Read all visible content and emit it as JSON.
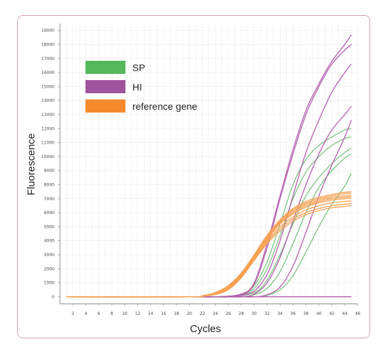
{
  "chart_data": {
    "type": "line",
    "title": "",
    "xlabel": "Cycles",
    "ylabel": "Fluorescence",
    "xlim": [
      0,
      46
    ],
    "ylim": [
      -500,
      19500
    ],
    "grid": true,
    "legend_position": "top-left",
    "x_ticks": [
      2,
      4,
      6,
      8,
      10,
      12,
      14,
      16,
      18,
      20,
      22,
      24,
      26,
      28,
      30,
      32,
      34,
      36,
      38,
      40,
      42,
      44,
      46
    ],
    "y_ticks": [
      0,
      1000,
      2000,
      3000,
      4000,
      5000,
      6000,
      7000,
      8000,
      9000,
      10000,
      11000,
      12000,
      13000,
      14000,
      15000,
      16000,
      17000,
      18000,
      19000
    ],
    "legend": [
      {
        "label": "SP",
        "color": "#55b85a"
      },
      {
        "label": "HI",
        "color": "#a0539e"
      },
      {
        "label": "reference gene",
        "color": "#f58a2c"
      }
    ],
    "series": [
      {
        "group": "SP",
        "color": "#7cc47f",
        "x": [
          1,
          20,
          24,
          28,
          30,
          32,
          34,
          36,
          38,
          40,
          42,
          44,
          45
        ],
        "y": [
          0,
          0,
          0,
          100,
          800,
          2500,
          5200,
          8000,
          9800,
          10800,
          11400,
          11900,
          12000
        ]
      },
      {
        "group": "SP",
        "color": "#7cc47f",
        "x": [
          1,
          20,
          24,
          28,
          30,
          32,
          34,
          36,
          38,
          40,
          42,
          44,
          45
        ],
        "y": [
          0,
          0,
          0,
          80,
          600,
          2000,
          4400,
          7000,
          8900,
          10000,
          10800,
          11300,
          11400
        ]
      },
      {
        "group": "SP",
        "color": "#7cc47f",
        "x": [
          1,
          22,
          26,
          30,
          32,
          34,
          36,
          38,
          40,
          42,
          44,
          45
        ],
        "y": [
          0,
          0,
          0,
          300,
          1200,
          3000,
          5200,
          7200,
          8500,
          9500,
          10300,
          10600
        ]
      },
      {
        "group": "SP",
        "color": "#7cc47f",
        "x": [
          1,
          24,
          28,
          30,
          32,
          34,
          36,
          38,
          40,
          42,
          44,
          45
        ],
        "y": [
          0,
          0,
          0,
          150,
          600,
          1800,
          3800,
          6000,
          7800,
          9000,
          9900,
          10200
        ]
      },
      {
        "group": "SP",
        "color": "#7cc47f",
        "x": [
          1,
          26,
          30,
          32,
          34,
          36,
          38,
          40,
          42,
          44,
          45
        ],
        "y": [
          0,
          0,
          0,
          100,
          500,
          1500,
          3200,
          5000,
          6600,
          7900,
          8800
        ]
      },
      {
        "group": "HI",
        "color": "#b55fb0",
        "x": [
          1,
          20,
          24,
          28,
          30,
          32,
          34,
          36,
          38,
          40,
          42,
          44,
          45
        ],
        "y": [
          0,
          0,
          0,
          200,
          1000,
          3800,
          7200,
          10500,
          13300,
          15200,
          16800,
          18000,
          18700
        ]
      },
      {
        "group": "HI",
        "color": "#b55fb0",
        "x": [
          1,
          20,
          24,
          28,
          30,
          32,
          34,
          36,
          38,
          40,
          42,
          44,
          45
        ],
        "y": [
          0,
          0,
          0,
          150,
          900,
          3500,
          7000,
          10200,
          13000,
          15000,
          16600,
          17600,
          18000
        ]
      },
      {
        "group": "HI",
        "color": "#b55fb0",
        "x": [
          1,
          22,
          26,
          28,
          30,
          32,
          34,
          36,
          38,
          40,
          42,
          44,
          45
        ],
        "y": [
          0,
          0,
          0,
          100,
          400,
          1600,
          4000,
          7200,
          10300,
          12600,
          14600,
          16000,
          16600
        ]
      },
      {
        "group": "HI",
        "color": "#b55fb0",
        "x": [
          1,
          24,
          28,
          30,
          32,
          34,
          36,
          38,
          40,
          42,
          44,
          45
        ],
        "y": [
          0,
          0,
          0,
          200,
          1000,
          2800,
          5400,
          8000,
          10200,
          11900,
          13000,
          13600
        ]
      },
      {
        "group": "HI",
        "color": "#b55fb0",
        "x": [
          1,
          26,
          30,
          32,
          34,
          36,
          38,
          40,
          42,
          44,
          45
        ],
        "y": [
          0,
          0,
          0,
          150,
          700,
          2200,
          4600,
          7200,
          9400,
          11400,
          12600
        ]
      },
      {
        "group": "HI",
        "color": "#b55fb0",
        "x": [
          1,
          45
        ],
        "y": [
          0,
          0
        ]
      },
      {
        "group": "HI",
        "color": "#b55fb0",
        "x": [
          1,
          45
        ],
        "y": [
          0,
          0
        ]
      },
      {
        "group": "reference gene",
        "color": "#f6a152",
        "x": [
          1,
          20,
          22,
          24,
          26,
          28,
          30,
          32,
          34,
          36,
          38,
          40,
          42,
          44,
          45
        ],
        "y": [
          0,
          0,
          80,
          300,
          800,
          1700,
          3000,
          4400,
          5500,
          6300,
          6800,
          7100,
          7300,
          7450,
          7500
        ]
      },
      {
        "group": "reference gene",
        "color": "#f6a152",
        "x": [
          1,
          20,
          22,
          24,
          26,
          28,
          30,
          32,
          34,
          36,
          38,
          40,
          42,
          44,
          45
        ],
        "y": [
          0,
          0,
          60,
          250,
          700,
          1600,
          2900,
          4200,
          5300,
          6100,
          6600,
          6900,
          7100,
          7200,
          7250
        ]
      },
      {
        "group": "reference gene",
        "color": "#f6a152",
        "x": [
          1,
          20,
          22,
          24,
          26,
          28,
          30,
          32,
          34,
          36,
          38,
          40,
          42,
          44,
          45
        ],
        "y": [
          0,
          0,
          50,
          220,
          650,
          1500,
          2800,
          4100,
          5200,
          5900,
          6400,
          6700,
          6900,
          7000,
          7050
        ]
      },
      {
        "group": "reference gene",
        "color": "#f6a152",
        "x": [
          1,
          20,
          22,
          24,
          26,
          28,
          30,
          32,
          34,
          36,
          38,
          40,
          42,
          44,
          45
        ],
        "y": [
          0,
          0,
          40,
          200,
          600,
          1450,
          2700,
          4000,
          5000,
          5700,
          6200,
          6500,
          6700,
          6800,
          6850
        ]
      },
      {
        "group": "reference gene",
        "color": "#f6a152",
        "x": [
          1,
          20,
          22,
          24,
          26,
          28,
          30,
          32,
          34,
          36,
          38,
          40,
          42,
          44,
          45
        ],
        "y": [
          0,
          0,
          30,
          180,
          550,
          1400,
          2650,
          3900,
          4850,
          5550,
          6000,
          6300,
          6500,
          6600,
          6650
        ]
      },
      {
        "group": "reference gene",
        "color": "#f6a152",
        "x": [
          1,
          20,
          22,
          24,
          26,
          28,
          30,
          32,
          34,
          36,
          38,
          40,
          42,
          44,
          45
        ],
        "y": [
          0,
          0,
          30,
          160,
          500,
          1350,
          2600,
          3800,
          4700,
          5400,
          5850,
          6150,
          6350,
          6450,
          6500
        ]
      },
      {
        "group": "reference gene",
        "color": "#f6a152",
        "x": [
          1,
          20,
          22,
          24,
          26,
          28,
          30,
          32,
          34,
          36,
          38,
          40,
          42,
          44,
          45
        ],
        "y": [
          0,
          0,
          70,
          280,
          760,
          1650,
          2950,
          4300,
          5400,
          6200,
          6700,
          7000,
          7200,
          7350,
          7400
        ]
      },
      {
        "group": "reference gene",
        "color": "#f6a152",
        "x": [
          1,
          20,
          22,
          24,
          26,
          28,
          30,
          32,
          34,
          36,
          38,
          40,
          42,
          44,
          45
        ],
        "y": [
          0,
          0,
          45,
          230,
          680,
          1550,
          2850,
          4150,
          5250,
          6000,
          6500,
          6800,
          7000,
          7100,
          7150
        ]
      }
    ]
  }
}
